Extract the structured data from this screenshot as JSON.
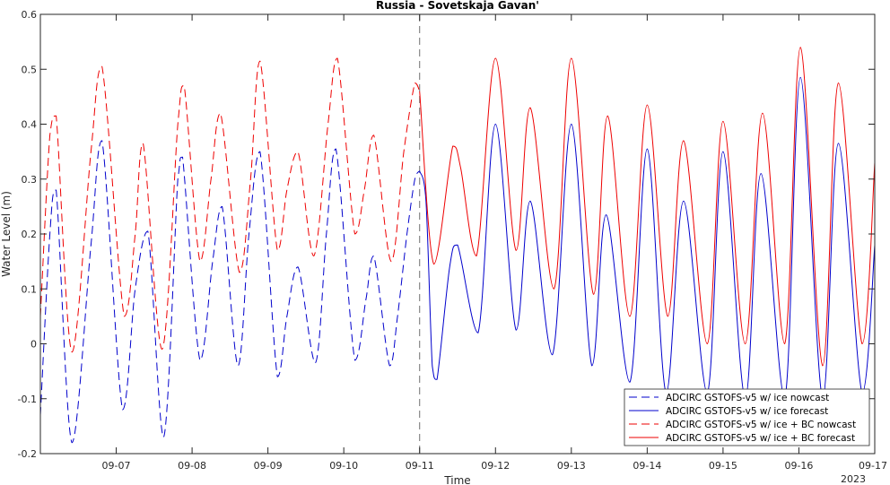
{
  "chart_data": {
    "type": "line",
    "title": "Russia - Sovetskaja Gavan'",
    "xlabel": "Time",
    "ylabel": "Water Level (m)",
    "year_label": "2023",
    "x_ticks": [
      "09-07",
      "09-08",
      "09-09",
      "09-10",
      "09-11",
      "09-12",
      "09-13",
      "09-14",
      "09-15",
      "09-16",
      "09-17"
    ],
    "xlim": [
      "09-06 00:00",
      "09-17 00:00"
    ],
    "ylim": [
      -0.2,
      0.6
    ],
    "y_ticks": [
      -0.2,
      -0.1,
      0,
      0.1,
      0.2,
      0.3,
      0.4,
      0.5,
      0.6
    ],
    "y_tick_labels": [
      "-0.2",
      "-0.1",
      "0",
      "0.1",
      "0.2",
      "0.3",
      "0.4",
      "0.5",
      "0.6"
    ],
    "divider_at": "09-11 00:00",
    "grid": false,
    "legend_position": "bottom-right",
    "series": [
      {
        "name": "ADCIRC GSTOFS-v5 w/ ice nowcast",
        "color": "#0000cc",
        "dash": "dashed",
        "points": [
          [
            "09-06 00:00",
            -0.13
          ],
          [
            "09-06 03:00",
            0.2
          ],
          [
            "09-06 05:00",
            0.28
          ],
          [
            "09-06 10:00",
            -0.18
          ],
          [
            "09-06 16:00",
            0.18
          ],
          [
            "09-06 19:30",
            0.37
          ],
          [
            "09-07 02:00",
            -0.12
          ],
          [
            "09-07 06:00",
            0.1
          ],
          [
            "09-07 10:00",
            0.205
          ],
          [
            "09-07 15:00",
            -0.17
          ],
          [
            "09-07 19:30",
            0.3
          ],
          [
            "09-07 21:00",
            0.34
          ],
          [
            "09-08 02:30",
            -0.03
          ],
          [
            "09-08 06:30",
            0.15
          ],
          [
            "09-08 09:30",
            0.25
          ],
          [
            "09-08 14:30",
            -0.04
          ],
          [
            "09-08 18:00",
            0.2
          ],
          [
            "09-08 21:30",
            0.35
          ],
          [
            "09-09 03:00",
            -0.06
          ],
          [
            "09-09 06:00",
            0.05
          ],
          [
            "09-09 09:30",
            0.14
          ],
          [
            "09-09 15:00",
            -0.035
          ],
          [
            "09-09 18:30",
            0.2
          ],
          [
            "09-09 21:30",
            0.355
          ],
          [
            "09-10 03:30",
            -0.03
          ],
          [
            "09-10 07:00",
            0.08
          ],
          [
            "09-10 09:30",
            0.16
          ],
          [
            "09-10 14:30",
            -0.04
          ],
          [
            "09-10 17:00",
            0.05
          ],
          [
            "09-10 20:00",
            0.2
          ],
          [
            "09-10 22:30",
            0.3
          ],
          [
            "09-11 00:00",
            0.315
          ]
        ]
      },
      {
        "name": "ADCIRC GSTOFS-v5 w/ ice forecast",
        "color": "#0000cc",
        "dash": "solid",
        "points": [
          [
            "09-11 00:00",
            0.315
          ],
          [
            "09-11 02:00",
            0.26
          ],
          [
            "09-11 04:00",
            -0.04
          ],
          [
            "09-11 05:30",
            -0.065
          ],
          [
            "09-11 09:30",
            0.14
          ],
          [
            "09-11 12:00",
            0.18
          ],
          [
            "09-11 18:30",
            0.02
          ],
          [
            "09-12 00:00",
            0.4
          ],
          [
            "09-12 06:30",
            0.025
          ],
          [
            "09-12 11:00",
            0.26
          ],
          [
            "09-12 18:00",
            -0.02
          ],
          [
            "09-13 00:00",
            0.4
          ],
          [
            "09-13 06:30",
            -0.04
          ],
          [
            "09-13 11:00",
            0.235
          ],
          [
            "09-13 18:30",
            -0.07
          ],
          [
            "09-14 00:00",
            0.355
          ],
          [
            "09-14 06:00",
            -0.09
          ],
          [
            "09-14 11:30",
            0.26
          ],
          [
            "09-14 19:00",
            -0.09
          ],
          [
            "09-15 00:00",
            0.35
          ],
          [
            "09-15 07:00",
            -0.1
          ],
          [
            "09-15 12:00",
            0.31
          ],
          [
            "09-15 19:30",
            -0.1
          ],
          [
            "09-16 00:30",
            0.485
          ],
          [
            "09-16 07:30",
            -0.1
          ],
          [
            "09-16 12:30",
            0.365
          ],
          [
            "09-16 20:00",
            -0.09
          ],
          [
            "09-17 00:00",
            0.18
          ]
        ]
      },
      {
        "name": "ADCIRC GSTOFS-v5 w/ ice + BC nowcast",
        "color": "#ee0000",
        "dash": "dashed",
        "points": [
          [
            "09-06 00:00",
            0.05
          ],
          [
            "09-06 03:00",
            0.38
          ],
          [
            "09-06 05:00",
            0.415
          ],
          [
            "09-06 10:00",
            -0.015
          ],
          [
            "09-06 16:00",
            0.35
          ],
          [
            "09-06 19:30",
            0.505
          ],
          [
            "09-07 02:30",
            0.05
          ],
          [
            "09-07 06:00",
            0.2
          ],
          [
            "09-07 08:30",
            0.365
          ],
          [
            "09-07 14:30",
            -0.01
          ],
          [
            "09-07 19:30",
            0.4
          ],
          [
            "09-07 21:30",
            0.47
          ],
          [
            "09-08 02:30",
            0.15
          ],
          [
            "09-08 06:00",
            0.3
          ],
          [
            "09-08 09:00",
            0.42
          ],
          [
            "09-08 15:00",
            0.13
          ],
          [
            "09-08 18:30",
            0.3
          ],
          [
            "09-08 21:30",
            0.515
          ],
          [
            "09-09 03:00",
            0.17
          ],
          [
            "09-09 06:00",
            0.28
          ],
          [
            "09-09 09:30",
            0.35
          ],
          [
            "09-09 14:30",
            0.16
          ],
          [
            "09-09 19:00",
            0.4
          ],
          [
            "09-09 22:00",
            0.52
          ],
          [
            "09-10 03:30",
            0.2
          ],
          [
            "09-10 06:30",
            0.28
          ],
          [
            "09-10 09:30",
            0.38
          ],
          [
            "09-10 15:00",
            0.15
          ],
          [
            "09-10 19:00",
            0.35
          ],
          [
            "09-10 22:30",
            0.475
          ],
          [
            "09-11 00:00",
            0.46
          ]
        ]
      },
      {
        "name": "ADCIRC GSTOFS-v5 w/ ice + BC forecast",
        "color": "#ee0000",
        "dash": "solid",
        "points": [
          [
            "09-11 00:00",
            0.46
          ],
          [
            "09-11 04:30",
            0.145
          ],
          [
            "09-11 10:30",
            0.36
          ],
          [
            "09-11 13:00",
            0.32
          ],
          [
            "09-11 18:00",
            0.16
          ],
          [
            "09-12 00:00",
            0.52
          ],
          [
            "09-12 06:30",
            0.17
          ],
          [
            "09-12 11:00",
            0.43
          ],
          [
            "09-12 18:30",
            0.1
          ],
          [
            "09-13 00:00",
            0.52
          ],
          [
            "09-13 07:00",
            0.09
          ],
          [
            "09-13 11:30",
            0.415
          ],
          [
            "09-13 18:30",
            0.05
          ],
          [
            "09-14 00:00",
            0.435
          ],
          [
            "09-14 06:30",
            0.05
          ],
          [
            "09-14 11:30",
            0.37
          ],
          [
            "09-14 19:00",
            0.0
          ],
          [
            "09-15 00:00",
            0.405
          ],
          [
            "09-15 07:00",
            0.0
          ],
          [
            "09-15 12:30",
            0.42
          ],
          [
            "09-15 19:30",
            0.0
          ],
          [
            "09-16 00:30",
            0.54
          ],
          [
            "09-16 07:30",
            -0.04
          ],
          [
            "09-16 12:30",
            0.475
          ],
          [
            "09-16 20:00",
            0.0
          ],
          [
            "09-17 00:00",
            0.33
          ]
        ]
      }
    ]
  }
}
